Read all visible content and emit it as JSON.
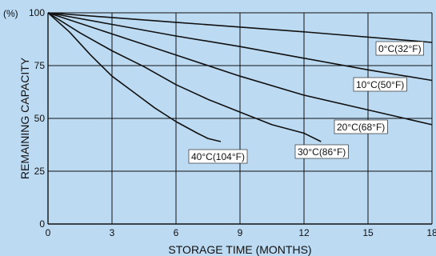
{
  "chart_data": {
    "type": "line",
    "title": "",
    "xlabel": "STORAGE TIME (MONTHS)",
    "ylabel": "REMAINING CAPACITY",
    "y_unit_label": "(%)",
    "xlim": [
      0,
      18
    ],
    "ylim": [
      0,
      100
    ],
    "xticks": [
      0,
      3,
      6,
      9,
      12,
      15,
      18
    ],
    "yticks": [
      0,
      25,
      50,
      75,
      100
    ],
    "grid": true,
    "background": "#bcdaf2",
    "line_color": "#111111",
    "series": [
      {
        "name": "0°C(32°F)",
        "x": [
          0,
          6,
          12,
          18
        ],
        "y": [
          100,
          95.5,
          91,
          86
        ]
      },
      {
        "name": "10°C(50°F)",
        "x": [
          0,
          3,
          6,
          9,
          12,
          15,
          18
        ],
        "y": [
          100,
          94.5,
          89,
          84,
          78.5,
          73,
          68
        ]
      },
      {
        "name": "20°C(68°F)",
        "x": [
          0,
          3,
          6,
          9,
          12,
          15,
          18
        ],
        "y": [
          100,
          90,
          80,
          70,
          61,
          54,
          47
        ]
      },
      {
        "name": "30°C(86°F)",
        "x": [
          0,
          1.5,
          3,
          4.5,
          6,
          7.5,
          9,
          10.5,
          12,
          12.8
        ],
        "y": [
          100,
          90.5,
          82,
          74.5,
          66,
          59,
          53,
          47,
          43,
          39
        ]
      },
      {
        "name": "40°C(104°F)",
        "x": [
          0,
          1,
          2,
          3,
          4,
          5,
          6,
          7,
          7.5,
          8.1
        ],
        "y": [
          100,
          91,
          80,
          70,
          62.5,
          55,
          48.5,
          43,
          40.5,
          39
        ]
      }
    ]
  }
}
